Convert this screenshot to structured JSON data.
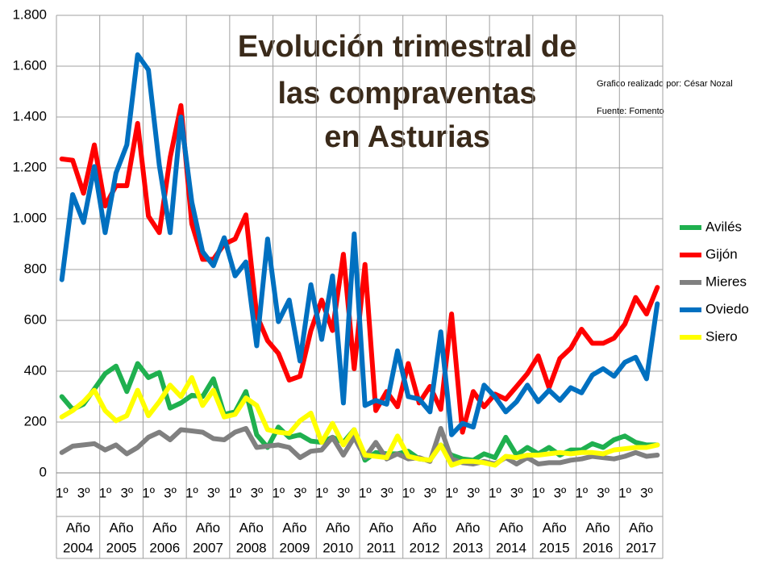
{
  "chart_data": {
    "type": "line",
    "title": [
      "Evolución trimestral de",
      "las compraventas",
      "en Asturias"
    ],
    "annotations": [
      "Grafico realizado por: César Nozal",
      "Fuente: Fomento"
    ],
    "categories": [
      "1º",
      null,
      "3º",
      null,
      "1º",
      null,
      "3º",
      null,
      "1º",
      null,
      "3º",
      null,
      "1º",
      null,
      "3º",
      null,
      "1º",
      null,
      "3º",
      null,
      "1º",
      null,
      "3º",
      null,
      "1º",
      null,
      "3º",
      null,
      "1º",
      null,
      "3º",
      null,
      "1º",
      null,
      "3º",
      null,
      "1º",
      null,
      "3º",
      null,
      "1º",
      null,
      "3º",
      null,
      "1º",
      null,
      "3º",
      null,
      "1º",
      null,
      "3º",
      null,
      "1º",
      null,
      "3º",
      null
    ],
    "groups": [
      [
        "Año",
        "2004"
      ],
      [
        "Año",
        "2005"
      ],
      [
        "Año",
        "2006"
      ],
      [
        "Año",
        "2007"
      ],
      [
        "Año",
        "2008"
      ],
      [
        "Año",
        "2009"
      ],
      [
        "Año",
        "2010"
      ],
      [
        "Año",
        "2011"
      ],
      [
        "Año",
        "2012"
      ],
      [
        "Año",
        "2013"
      ],
      [
        "Año",
        "2014"
      ],
      [
        "Año",
        "2015"
      ],
      [
        "Año",
        "2016"
      ],
      [
        "Año",
        "2017"
      ]
    ],
    "ylim": [
      0,
      1800
    ],
    "yticks": [
      0,
      200,
      400,
      600,
      800,
      {
        "value": 1000,
        "label": "1.000"
      },
      {
        "value": 1200,
        "label": "1.200"
      },
      {
        "value": 1400,
        "label": "1.400"
      },
      {
        "value": 1600,
        "label": "1.600"
      },
      {
        "value": 1800,
        "label": "1.800"
      }
    ],
    "grid": true,
    "legend": "right",
    "series": [
      {
        "name": "Avilés",
        "color": "#1fb04f",
        "values": [
          300,
          250,
          270,
          330,
          390,
          420,
          320,
          430,
          375,
          395,
          255,
          275,
          305,
          300,
          370,
          230,
          240,
          320,
          150,
          100,
          180,
          140,
          150,
          125,
          120,
          140,
          120,
          170,
          50,
          80,
          75,
          75,
          85,
          55,
          50,
          110,
          70,
          55,
          50,
          75,
          60,
          140,
          70,
          100,
          75,
          100,
          70,
          90,
          90,
          115,
          100,
          130,
          145,
          120,
          110,
          110
        ]
      },
      {
        "name": "Gijón",
        "color": "#ff0000",
        "values": [
          1235,
          1230,
          1100,
          1290,
          1050,
          1130,
          1130,
          1375,
          1010,
          945,
          1240,
          1445,
          980,
          840,
          840,
          900,
          920,
          1015,
          620,
          520,
          470,
          365,
          380,
          560,
          680,
          560,
          860,
          410,
          820,
          245,
          320,
          260,
          430,
          275,
          340,
          250,
          625,
          160,
          320,
          260,
          310,
          290,
          340,
          390,
          460,
          335,
          450,
          490,
          565,
          510,
          510,
          530,
          585,
          690,
          625,
          730
        ]
      },
      {
        "name": "Mieres",
        "color": "#808080",
        "values": [
          80,
          105,
          110,
          115,
          90,
          110,
          75,
          100,
          140,
          160,
          130,
          170,
          165,
          160,
          135,
          130,
          160,
          175,
          100,
          105,
          110,
          100,
          60,
          85,
          90,
          140,
          70,
          140,
          60,
          120,
          55,
          75,
          55,
          60,
          45,
          175,
          55,
          40,
          35,
          45,
          35,
          60,
          35,
          60,
          35,
          40,
          40,
          50,
          55,
          65,
          60,
          55,
          65,
          80,
          65,
          70
        ]
      },
      {
        "name": "Oviedo",
        "color": "#0070c0",
        "values": [
          760,
          1095,
          985,
          1205,
          945,
          1180,
          1290,
          1645,
          1585,
          1210,
          945,
          1400,
          1065,
          870,
          815,
          925,
          775,
          830,
          500,
          920,
          595,
          680,
          440,
          740,
          525,
          775,
          275,
          940,
          265,
          285,
          270,
          480,
          300,
          290,
          240,
          555,
          150,
          195,
          180,
          345,
          300,
          240,
          280,
          345,
          280,
          325,
          285,
          335,
          315,
          385,
          410,
          380,
          435,
          455,
          370,
          665
        ]
      },
      {
        "name": "Siero",
        "color": "#ffff00",
        "values": [
          220,
          245,
          280,
          325,
          245,
          205,
          225,
          325,
          225,
          280,
          345,
          300,
          375,
          265,
          325,
          220,
          230,
          295,
          265,
          170,
          160,
          155,
          205,
          235,
          120,
          195,
          110,
          170,
          70,
          65,
          60,
          145,
          65,
          55,
          50,
          110,
          30,
          45,
          45,
          40,
          30,
          65,
          60,
          70,
          70,
          75,
          80,
          75,
          80,
          80,
          75,
          90,
          95,
          100,
          100,
          110
        ]
      }
    ]
  }
}
